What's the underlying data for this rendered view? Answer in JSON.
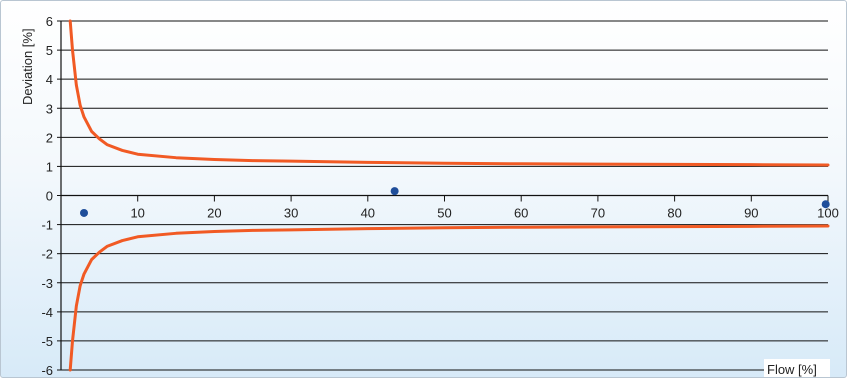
{
  "chart_data": {
    "type": "line",
    "xlabel": "Flow [%]",
    "ylabel": "Deviation [%]",
    "xlim": [
      0,
      100
    ],
    "ylim": [
      -6,
      6
    ],
    "x_ticks": [
      10,
      20,
      30,
      40,
      50,
      60,
      70,
      80,
      90,
      100
    ],
    "y_ticks": [
      6,
      5,
      4,
      3,
      2,
      1,
      0,
      -1,
      -2,
      -3,
      -4,
      -5,
      -6
    ],
    "grid": "horizontal",
    "series": [
      {
        "kind": "curve",
        "color": "#f15a24",
        "x": [
          1.2,
          1.5,
          2,
          2.5,
          3,
          4,
          5,
          6,
          8,
          10,
          15,
          20,
          25,
          30,
          40,
          50,
          60,
          70,
          80,
          90,
          100
        ],
        "values": [
          6.0,
          5.0,
          3.8,
          3.1,
          2.7,
          2.2,
          1.95,
          1.75,
          1.55,
          1.42,
          1.3,
          1.24,
          1.2,
          1.18,
          1.14,
          1.11,
          1.09,
          1.08,
          1.07,
          1.06,
          1.05
        ]
      },
      {
        "kind": "curve",
        "color": "#f15a24",
        "x": [
          1.2,
          1.5,
          2,
          2.5,
          3,
          4,
          5,
          6,
          8,
          10,
          15,
          20,
          25,
          30,
          40,
          50,
          60,
          70,
          80,
          90,
          100
        ],
        "values": [
          -6.0,
          -5.0,
          -3.8,
          -3.1,
          -2.7,
          -2.2,
          -1.95,
          -1.75,
          -1.55,
          -1.42,
          -1.3,
          -1.24,
          -1.2,
          -1.18,
          -1.14,
          -1.11,
          -1.09,
          -1.08,
          -1.07,
          -1.06,
          -1.05
        ]
      },
      {
        "kind": "points",
        "color": "#1f4e9a",
        "x": [
          3,
          43.5,
          99.7
        ],
        "values": [
          -0.6,
          0.15,
          -0.3
        ]
      }
    ]
  }
}
